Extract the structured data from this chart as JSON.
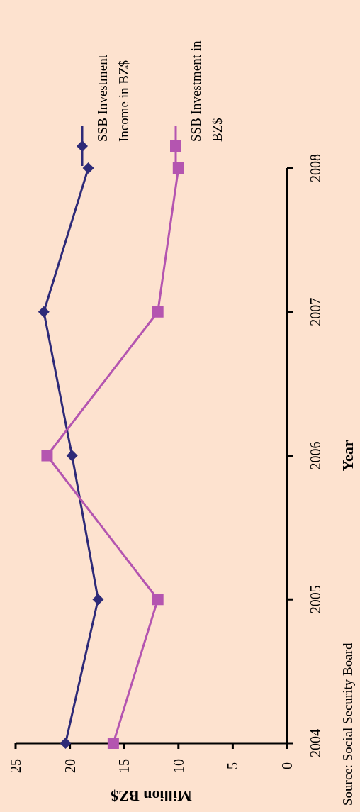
{
  "chart_data": {
    "type": "line",
    "orientation": "horizontal",
    "xlabel": "Million BZ$",
    "ylabel": "Year",
    "categories": [
      "2008",
      "2007",
      "2006",
      "2005",
      "2004"
    ],
    "series": [
      {
        "name": "SSB Investment Income in BZ$",
        "color": "#2e2a78",
        "marker": "diamond",
        "values": [
          18.3,
          22.4,
          19.8,
          17.4,
          20.4
        ]
      },
      {
        "name": "SSB Investment in BZ$",
        "color": "#b455b0",
        "marker": "square",
        "values": [
          10.0,
          11.9,
          22.1,
          11.9,
          16.0
        ]
      }
    ],
    "xlim": [
      25,
      0
    ],
    "xticks": [
      0,
      5,
      10,
      15,
      20,
      25
    ],
    "grid": false,
    "legend": "top",
    "annotations": [
      "Source: Social Security Board"
    ]
  }
}
